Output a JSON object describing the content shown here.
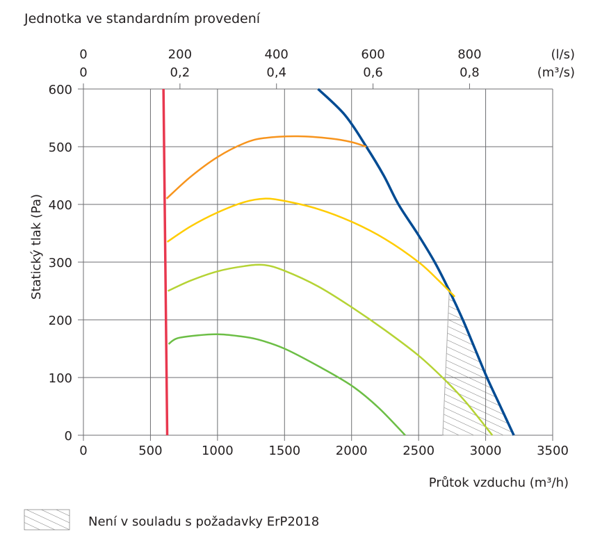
{
  "chart_data": {
    "type": "line",
    "title": "Jednotka ve standardním provedení",
    "xlabel": "Průtok vzduchu (m³/h)",
    "ylabel": "Statický tlak (Pa)",
    "xlim": [
      0,
      3500
    ],
    "ylim": [
      0,
      600
    ],
    "x_ticks": [
      "0",
      "500",
      "1000",
      "1500",
      "2000",
      "2500",
      "3000",
      "3500"
    ],
    "y_ticks": [
      "0",
      "100",
      "200",
      "300",
      "400",
      "500",
      "600"
    ],
    "grid": true,
    "top_axis": {
      "ls_unit": "(l/s)",
      "m3s_unit": "(m³/s)",
      "ls_ticks": [
        "0",
        "200",
        "400",
        "600",
        "800"
      ],
      "m3s_ticks": [
        "0",
        "0,2",
        "0,4",
        "0,6",
        "0,8"
      ]
    },
    "series": [
      {
        "color": "#e8384f",
        "points": [
          [
            597,
            600
          ],
          [
            625,
            0
          ]
        ]
      },
      {
        "color": "#004b93",
        "points": [
          [
            1750,
            600
          ],
          [
            1950,
            555
          ],
          [
            2110,
            500
          ],
          [
            2240,
            450
          ],
          [
            2350,
            400
          ],
          [
            2490,
            350
          ],
          [
            2620,
            300
          ],
          [
            2730,
            250
          ],
          [
            2830,
            200
          ],
          [
            2920,
            150
          ],
          [
            3010,
            100
          ],
          [
            3110,
            50
          ],
          [
            3210,
            0
          ]
        ]
      },
      {
        "color": "#f7941d",
        "points": [
          [
            620,
            410
          ],
          [
            800,
            448
          ],
          [
            1000,
            482
          ],
          [
            1200,
            506
          ],
          [
            1350,
            515
          ],
          [
            1600,
            518
          ],
          [
            1850,
            514
          ],
          [
            2000,
            508
          ],
          [
            2110,
            500
          ]
        ]
      },
      {
        "color": "#ffcc00",
        "points": [
          [
            625,
            335
          ],
          [
            800,
            362
          ],
          [
            1000,
            386
          ],
          [
            1200,
            404
          ],
          [
            1350,
            410
          ],
          [
            1500,
            406
          ],
          [
            1750,
            392
          ],
          [
            2000,
            370
          ],
          [
            2250,
            340
          ],
          [
            2500,
            300
          ],
          [
            2650,
            268
          ],
          [
            2770,
            240
          ]
        ]
      },
      {
        "color": "#b5d334",
        "points": [
          [
            630,
            250
          ],
          [
            800,
            268
          ],
          [
            1000,
            284
          ],
          [
            1200,
            293
          ],
          [
            1350,
            295
          ],
          [
            1500,
            285
          ],
          [
            1750,
            258
          ],
          [
            2000,
            222
          ],
          [
            2250,
            182
          ],
          [
            2500,
            138
          ],
          [
            2700,
            95
          ],
          [
            2850,
            58
          ],
          [
            3050,
            0
          ]
        ]
      },
      {
        "color": "#6cbe45",
        "points": [
          [
            635,
            158
          ],
          [
            700,
            168
          ],
          [
            850,
            173
          ],
          [
            1000,
            175
          ],
          [
            1150,
            172
          ],
          [
            1300,
            166
          ],
          [
            1500,
            150
          ],
          [
            1750,
            120
          ],
          [
            2000,
            86
          ],
          [
            2200,
            48
          ],
          [
            2400,
            0
          ]
        ]
      }
    ],
    "hatched_region": [
      [
        2730,
        255
      ],
      [
        2830,
        200
      ],
      [
        2920,
        150
      ],
      [
        3010,
        100
      ],
      [
        3110,
        50
      ],
      [
        3210,
        0
      ],
      [
        2680,
        0
      ]
    ],
    "legend": {
      "label": "Není v souladu s požadavky ErP2018",
      "placement": "bottom-left"
    }
  }
}
